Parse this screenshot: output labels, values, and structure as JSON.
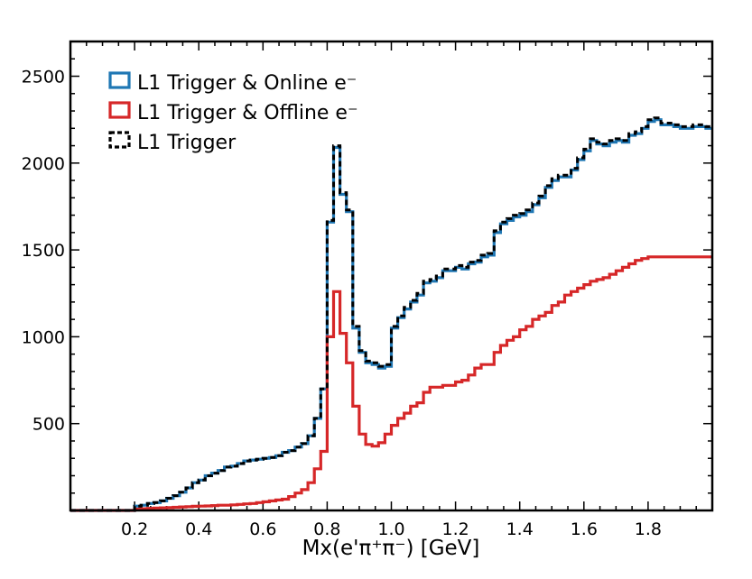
{
  "chart_data": {
    "type": "histogram",
    "title": "",
    "xlabel": "Mx(e'π⁺π⁻) [GeV]",
    "ylabel": "",
    "xlim": [
      0.0,
      2.0
    ],
    "ylim": [
      0,
      2700
    ],
    "xticks": [
      "0.2",
      "0.4",
      "0.6",
      "0.8",
      "1.0",
      "1.2",
      "1.4",
      "1.6",
      "1.8"
    ],
    "yticks": [
      "500",
      "1000",
      "1500",
      "2000",
      "2500"
    ],
    "legend_position": "top-left",
    "bin_width": 0.02,
    "bin_start": 0.0,
    "series": [
      {
        "name": "L1 Trigger & Online e⁻",
        "color": "#1f77b4",
        "style": "solid",
        "values": [
          0,
          0,
          0,
          0,
          0,
          0,
          0,
          0,
          0,
          0,
          25,
          30,
          40,
          45,
          55,
          70,
          85,
          105,
          130,
          160,
          175,
          200,
          215,
          230,
          250,
          255,
          270,
          285,
          290,
          295,
          300,
          305,
          315,
          335,
          345,
          365,
          385,
          430,
          530,
          700,
          1660,
          2090,
          1820,
          1720,
          1050,
          910,
          850,
          840,
          820,
          830,
          1050,
          1110,
          1160,
          1200,
          1240,
          1310,
          1320,
          1340,
          1380,
          1380,
          1400,
          1390,
          1420,
          1430,
          1460,
          1470,
          1600,
          1650,
          1670,
          1690,
          1700,
          1720,
          1760,
          1800,
          1860,
          1900,
          1920,
          1920,
          1960,
          2020,
          2070,
          2130,
          2110,
          2100,
          2120,
          2130,
          2120,
          2160,
          2170,
          2200,
          2240,
          2250,
          2220,
          2220,
          2210,
          2200,
          2200,
          2210,
          2210,
          2200
        ]
      },
      {
        "name": "L1 Trigger & Offline e⁻",
        "color": "#d62728",
        "style": "solid",
        "values": [
          0,
          0,
          0,
          0,
          0,
          0,
          0,
          0,
          0,
          0,
          8,
          10,
          12,
          14,
          15,
          16,
          18,
          20,
          22,
          24,
          25,
          26,
          28,
          30,
          30,
          32,
          35,
          38,
          40,
          45,
          50,
          55,
          60,
          65,
          80,
          100,
          120,
          160,
          240,
          340,
          1000,
          1260,
          1020,
          850,
          600,
          440,
          380,
          370,
          390,
          440,
          490,
          530,
          560,
          600,
          620,
          680,
          710,
          710,
          720,
          720,
          740,
          750,
          780,
          820,
          840,
          840,
          910,
          950,
          980,
          1000,
          1040,
          1060,
          1100,
          1120,
          1140,
          1180,
          1200,
          1240,
          1260,
          1280,
          1300,
          1320,
          1330,
          1340,
          1360,
          1380,
          1400,
          1420,
          1440,
          1450,
          1460,
          1460,
          1460,
          1460,
          1460,
          1460,
          1460,
          1460,
          1460,
          1460
        ]
      },
      {
        "name": "L1 Trigger",
        "color": "#000000",
        "style": "dashed",
        "values": [
          0,
          0,
          0,
          0,
          0,
          0,
          0,
          0,
          0,
          0,
          25,
          30,
          40,
          45,
          55,
          70,
          85,
          105,
          130,
          160,
          175,
          200,
          215,
          230,
          250,
          255,
          270,
          285,
          290,
          295,
          300,
          305,
          315,
          335,
          345,
          365,
          385,
          430,
          530,
          700,
          1670,
          2100,
          1830,
          1730,
          1060,
          920,
          860,
          850,
          830,
          840,
          1060,
          1120,
          1170,
          1210,
          1250,
          1320,
          1330,
          1350,
          1390,
          1390,
          1410,
          1400,
          1430,
          1440,
          1470,
          1480,
          1610,
          1660,
          1680,
          1700,
          1710,
          1730,
          1770,
          1810,
          1870,
          1910,
          1930,
          1930,
          1970,
          2030,
          2080,
          2140,
          2120,
          2110,
          2130,
          2140,
          2130,
          2170,
          2180,
          2210,
          2250,
          2260,
          2230,
          2230,
          2220,
          2210,
          2210,
          2220,
          2220,
          2210
        ]
      }
    ]
  }
}
